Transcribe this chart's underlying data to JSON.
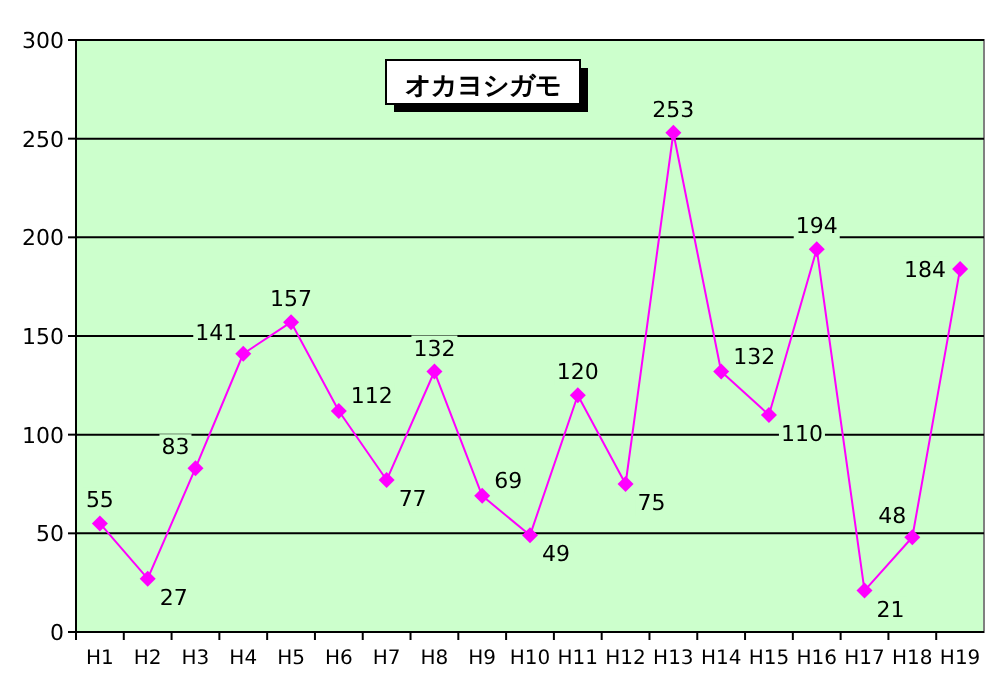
{
  "chart_data": {
    "type": "line",
    "title": "オカヨシガモ",
    "categories": [
      "H1",
      "H2",
      "H3",
      "H4",
      "H5",
      "H6",
      "H7",
      "H8",
      "H9",
      "H10",
      "H11",
      "H12",
      "H13",
      "H14",
      "H15",
      "H16",
      "H17",
      "H18",
      "H19"
    ],
    "series": [
      {
        "color": "#ff00ff",
        "values": [
          55,
          27,
          83,
          141,
          157,
          112,
          77,
          132,
          69,
          49,
          120,
          75,
          253,
          132,
          110,
          194,
          21,
          48,
          184
        ]
      }
    ],
    "ylim": [
      0,
      300
    ],
    "yticks": [
      0,
      50,
      100,
      150,
      200,
      250,
      300
    ],
    "grid": "y",
    "marker": "diamond",
    "data_labels": true
  }
}
